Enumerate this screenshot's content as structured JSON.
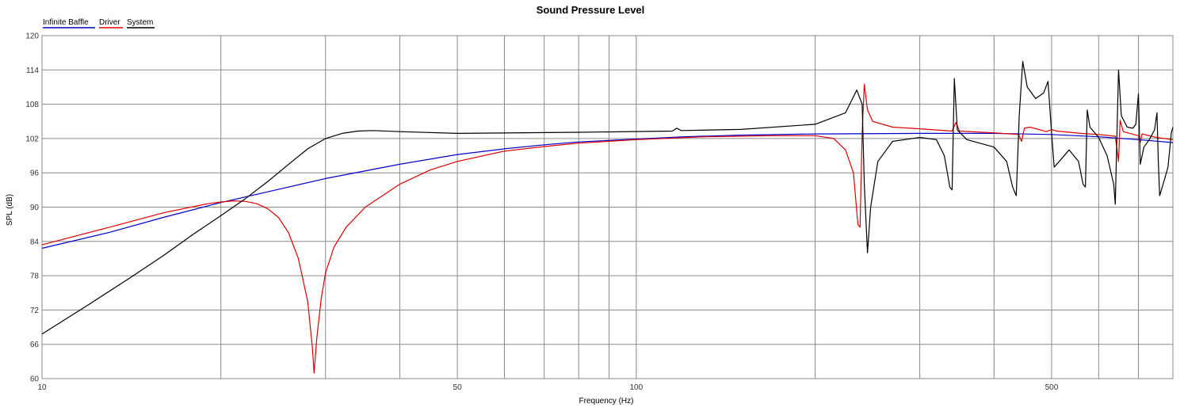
{
  "chart_data": {
    "type": "line",
    "title": "Sound Pressure Level",
    "xlabel": "Frequency (Hz)",
    "ylabel": "SPL (dB)",
    "x_scale": "log",
    "xlim": [
      10,
      800
    ],
    "ylim": [
      60,
      120
    ],
    "grid": true,
    "legend_position": "top-left",
    "y_ticks": [
      "60",
      "66",
      "72",
      "78",
      "84",
      "90",
      "96",
      "102",
      "108",
      "114",
      "120"
    ],
    "x_tick_labels": [
      {
        "x": 10,
        "label": "10"
      },
      {
        "x": 50,
        "label": "50"
      },
      {
        "x": 100,
        "label": "100"
      },
      {
        "x": 500,
        "label": "500"
      }
    ],
    "x_grid": [
      10,
      20,
      30,
      40,
      50,
      60,
      70,
      80,
      90,
      100,
      200,
      300,
      400,
      500,
      600,
      700,
      800
    ],
    "series": [
      {
        "name": "Infinite Baffle",
        "color": "#0000cc",
        "points": [
          [
            10,
            82.8
          ],
          [
            13,
            85.6
          ],
          [
            16,
            88.2
          ],
          [
            20,
            90.8
          ],
          [
            25,
            93.1
          ],
          [
            30,
            95.0
          ],
          [
            40,
            97.5
          ],
          [
            50,
            99.2
          ],
          [
            60,
            100.2
          ],
          [
            70,
            100.9
          ],
          [
            80,
            101.4
          ],
          [
            100,
            101.9
          ],
          [
            120,
            102.3
          ],
          [
            150,
            102.6
          ],
          [
            200,
            102.8
          ],
          [
            300,
            102.9
          ],
          [
            400,
            102.9
          ],
          [
            500,
            102.7
          ],
          [
            600,
            102.3
          ],
          [
            700,
            101.8
          ],
          [
            800,
            101.3
          ]
        ]
      },
      {
        "name": "Driver",
        "color": "#dd0000",
        "points": [
          [
            10,
            83.4
          ],
          [
            13,
            86.5
          ],
          [
            16,
            89.0
          ],
          [
            19,
            90.6
          ],
          [
            20,
            90.9
          ],
          [
            21,
            91.1
          ],
          [
            22,
            91.0
          ],
          [
            23,
            90.6
          ],
          [
            24,
            89.7
          ],
          [
            25,
            88.2
          ],
          [
            26,
            85.5
          ],
          [
            27,
            81.0
          ],
          [
            28,
            73.5
          ],
          [
            28.5,
            65.5
          ],
          [
            28.7,
            61.0
          ],
          [
            29,
            67.0
          ],
          [
            29.5,
            74.0
          ],
          [
            30,
            78.5
          ],
          [
            31,
            83.0
          ],
          [
            32.5,
            86.5
          ],
          [
            35,
            90.0
          ],
          [
            40,
            94.0
          ],
          [
            45,
            96.5
          ],
          [
            50,
            98.0
          ],
          [
            60,
            99.8
          ],
          [
            70,
            100.6
          ],
          [
            80,
            101.2
          ],
          [
            100,
            101.8
          ],
          [
            130,
            102.3
          ],
          [
            170,
            102.5
          ],
          [
            200,
            102.5
          ],
          [
            215,
            102.0
          ],
          [
            225,
            100.0
          ],
          [
            232,
            96.0
          ],
          [
            236,
            87.0
          ],
          [
            238,
            86.5
          ],
          [
            240,
            103.0
          ],
          [
            242,
            111.5
          ],
          [
            245,
            107.0
          ],
          [
            250,
            105.0
          ],
          [
            270,
            104.0
          ],
          [
            300,
            103.7
          ],
          [
            340,
            103.3
          ],
          [
            345,
            104.8
          ],
          [
            350,
            103.3
          ],
          [
            400,
            103.0
          ],
          [
            440,
            102.7
          ],
          [
            445,
            101.5
          ],
          [
            450,
            103.8
          ],
          [
            460,
            104.0
          ],
          [
            490,
            103.2
          ],
          [
            500,
            103.6
          ],
          [
            510,
            103.3
          ],
          [
            560,
            102.9
          ],
          [
            600,
            102.7
          ],
          [
            640,
            102.4
          ],
          [
            648,
            98.0
          ],
          [
            652,
            105.2
          ],
          [
            660,
            103.2
          ],
          [
            700,
            102.5
          ],
          [
            705,
            101.3
          ],
          [
            710,
            102.8
          ],
          [
            750,
            102.2
          ],
          [
            800,
            101.8
          ]
        ]
      },
      {
        "name": "System",
        "color": "#000000",
        "points": [
          [
            10,
            67.8
          ],
          [
            12,
            73.0
          ],
          [
            14,
            77.5
          ],
          [
            16,
            81.5
          ],
          [
            18,
            85.3
          ],
          [
            20,
            88.5
          ],
          [
            22,
            91.5
          ],
          [
            24,
            94.5
          ],
          [
            26,
            97.5
          ],
          [
            28,
            100.2
          ],
          [
            30,
            102.0
          ],
          [
            32,
            102.9
          ],
          [
            34,
            103.3
          ],
          [
            36,
            103.4
          ],
          [
            40,
            103.2
          ],
          [
            50,
            102.9
          ],
          [
            80,
            103.1
          ],
          [
            115,
            103.3
          ],
          [
            117,
            103.8
          ],
          [
            119,
            103.4
          ],
          [
            150,
            103.6
          ],
          [
            200,
            104.5
          ],
          [
            225,
            106.5
          ],
          [
            235,
            110.5
          ],
          [
            240,
            108.0
          ],
          [
            242,
            94.0
          ],
          [
            245,
            82.0
          ],
          [
            248,
            90.0
          ],
          [
            255,
            98.0
          ],
          [
            270,
            101.5
          ],
          [
            300,
            102.2
          ],
          [
            320,
            101.8
          ],
          [
            330,
            99.0
          ],
          [
            337,
            93.5
          ],
          [
            340,
            93.0
          ],
          [
            343,
            112.5
          ],
          [
            347,
            103.5
          ],
          [
            360,
            101.8
          ],
          [
            400,
            100.5
          ],
          [
            420,
            98.0
          ],
          [
            430,
            93.5
          ],
          [
            436,
            92.0
          ],
          [
            441,
            106.0
          ],
          [
            447,
            115.5
          ],
          [
            455,
            111.0
          ],
          [
            470,
            109.0
          ],
          [
            485,
            110.0
          ],
          [
            493,
            112.0
          ],
          [
            500,
            103.0
          ],
          [
            505,
            97.0
          ],
          [
            515,
            98.0
          ],
          [
            535,
            100.0
          ],
          [
            555,
            98.0
          ],
          [
            565,
            94.0
          ],
          [
            570,
            93.5
          ],
          [
            574,
            107.0
          ],
          [
            580,
            104.0
          ],
          [
            600,
            102.2
          ],
          [
            620,
            99.0
          ],
          [
            636,
            94.0
          ],
          [
            640,
            90.5
          ],
          [
            643,
            100.0
          ],
          [
            648,
            114.0
          ],
          [
            655,
            106.0
          ],
          [
            670,
            104.0
          ],
          [
            685,
            103.8
          ],
          [
            693,
            104.5
          ],
          [
            700,
            109.8
          ],
          [
            705,
            97.5
          ],
          [
            715,
            100.5
          ],
          [
            730,
            101.8
          ],
          [
            745,
            103.5
          ],
          [
            752,
            106.5
          ],
          [
            756,
            98.0
          ],
          [
            760,
            92.0
          ],
          [
            775,
            95.0
          ],
          [
            785,
            97.0
          ],
          [
            795,
            103.0
          ],
          [
            805,
            104.0
          ],
          [
            815,
            104.0
          ]
        ]
      }
    ]
  }
}
